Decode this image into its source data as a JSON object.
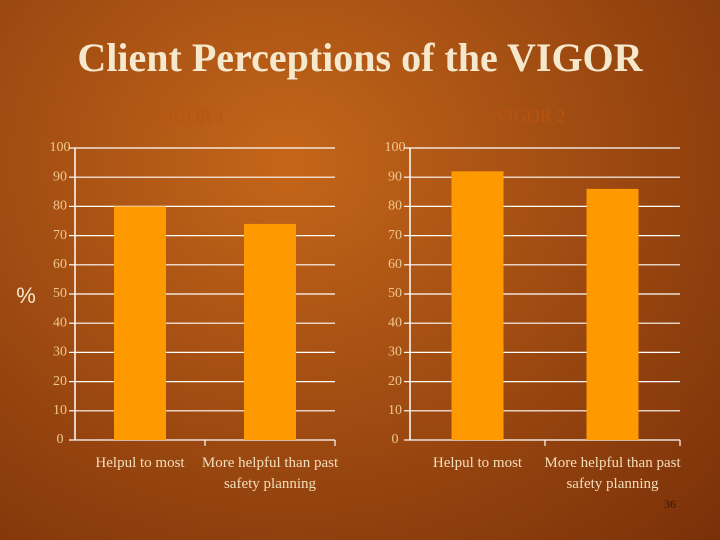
{
  "title": "Client Perceptions of the VIGOR",
  "page_number": "36",
  "chart_data": [
    {
      "type": "bar",
      "title": "VIGOR 1",
      "ylabel": "%",
      "categories": [
        "Helpul to most",
        "More helpful than past safety planning"
      ],
      "values": [
        80,
        74
      ],
      "color": "#ff9900",
      "ylim": [
        0,
        100
      ],
      "yticks": [
        0,
        10,
        20,
        30,
        40,
        50,
        60,
        70,
        80,
        90,
        100
      ],
      "grid": true
    },
    {
      "type": "bar",
      "title": "VIGOR 2",
      "categories": [
        "Helpul to most",
        "More helpful than past safety planning"
      ],
      "values": [
        92,
        86
      ],
      "color": "#ff9900",
      "ylim": [
        0,
        100
      ],
      "yticks": [
        0,
        10,
        20,
        30,
        40,
        50,
        60,
        70,
        80,
        90,
        100
      ],
      "grid": true
    }
  ]
}
